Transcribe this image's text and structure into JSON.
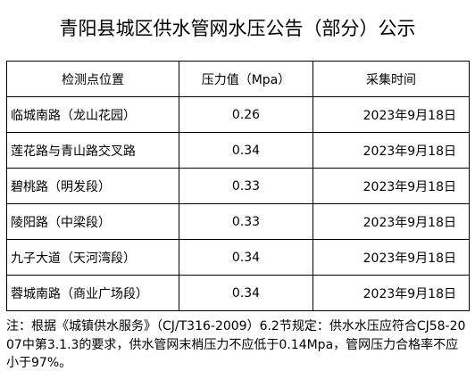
{
  "header": {
    "title": "青阳县城区供水管网水压公告（部分）公示"
  },
  "table": {
    "columns": [
      "检测点位置",
      "压力值（Mpa）",
      "采集时间"
    ],
    "rows": [
      [
        "临城南路（龙山花园）",
        "0.26",
        "2023年9月18日"
      ],
      [
        "莲花路与青山路交叉路",
        "0.34",
        "2023年9月18日"
      ],
      [
        "碧桃路（明发段）",
        "0.33",
        "2023年9月18日"
      ],
      [
        "陵阳路（中梁段）",
        "0.33",
        "2023年9月18日"
      ],
      [
        "九子大道（天河湾段）",
        "0.34",
        "2023年9月18日"
      ],
      [
        "蓉城南路（商业广场段）",
        "0.34",
        "2023年9月18日"
      ]
    ]
  },
  "note": "注：根据《城镇供水服务》（CJ/T316-2009）6.2节规定：供水水压应符合CJ58-2007中第3.1.3的要求，供水管网末梢压力不应低于0.14Mpa，管网压力合格率不应小于97%。"
}
